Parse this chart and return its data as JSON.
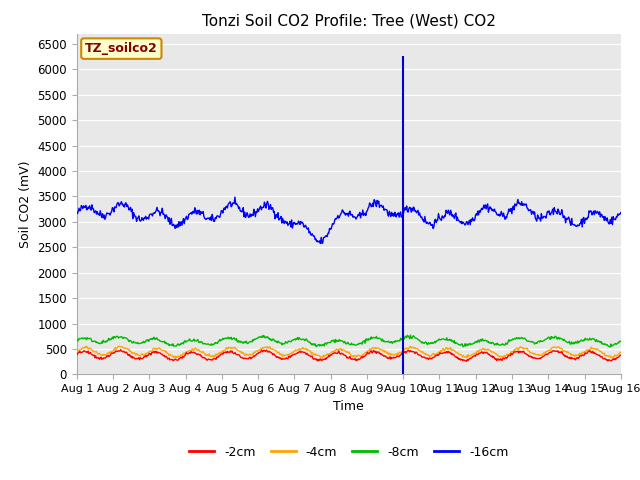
{
  "title": "Tonzi Soil CO2 Profile: Tree (West) CO2",
  "ylabel": "Soil CO2 (mV)",
  "xlabel": "Time",
  "ylim": [
    0,
    6700
  ],
  "yticks": [
    0,
    500,
    1000,
    1500,
    2000,
    2500,
    3000,
    3500,
    4000,
    4500,
    5000,
    5500,
    6000,
    6500
  ],
  "xtick_labels": [
    "Aug 1",
    "Aug 2",
    "Aug 3",
    "Aug 4",
    "Aug 5",
    "Aug 6",
    "Aug 7",
    "Aug 8",
    "Aug 9",
    "Aug 10",
    "Aug 11",
    "Aug 12",
    "Aug 13",
    "Aug 14",
    "Aug 15",
    "Aug 16"
  ],
  "vline_x": 9.0,
  "vline_color": "#0000cc",
  "colors": {
    "-2cm": "#ff0000",
    "-4cm": "#ffa500",
    "-8cm": "#00bb00",
    "-16cm": "#0000ff"
  },
  "legend_label": "TZ_soilco2",
  "legend_bg": "#ffffcc",
  "legend_border": "#cc8800",
  "bg_color": "#e8e8e8",
  "grid_color": "#ffffff",
  "fig_bg": "#ffffff",
  "title_fontsize": 11,
  "label_fontsize": 9,
  "tick_fontsize": 8.5
}
